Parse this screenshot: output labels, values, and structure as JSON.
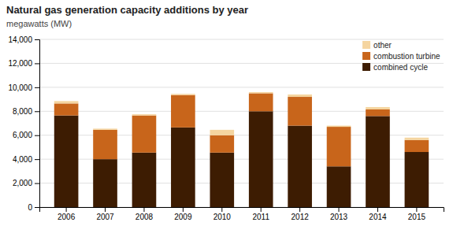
{
  "chart_data": {
    "type": "bar",
    "title": "Natural gas generation capacity additions by year",
    "subtitle": "megawatts (MW)",
    "stacked": true,
    "categories": [
      "2006",
      "2007",
      "2008",
      "2009",
      "2010",
      "2011",
      "2012",
      "2013",
      "2014",
      "2015"
    ],
    "series": [
      {
        "name": "combined cycle",
        "color": "#3d1c02",
        "values": [
          7650,
          4000,
          4550,
          6650,
          4550,
          8000,
          6800,
          3400,
          7600,
          4600
        ]
      },
      {
        "name": "combustion turbine",
        "color": "#c8651b",
        "values": [
          1000,
          2450,
          3100,
          2700,
          1450,
          1500,
          2400,
          3300,
          550,
          1000
        ]
      },
      {
        "name": "other",
        "color": "#f5d5a0",
        "values": [
          200,
          100,
          100,
          100,
          450,
          100,
          200,
          100,
          200,
          200
        ]
      }
    ],
    "ylim": [
      0,
      14000
    ],
    "yticks": [
      0,
      {
        "value": 2000,
        "label": "2,000"
      },
      {
        "value": 4000,
        "label": "4,000"
      },
      {
        "value": 6000,
        "label": "6,000"
      },
      {
        "value": 8000,
        "label": "8,000"
      },
      {
        "value": 10000,
        "label": "10,000"
      },
      {
        "value": 12000,
        "label": "12,000"
      },
      {
        "value": 14000,
        "label": "14,000"
      }
    ],
    "grid": true,
    "legend": "upper right"
  }
}
